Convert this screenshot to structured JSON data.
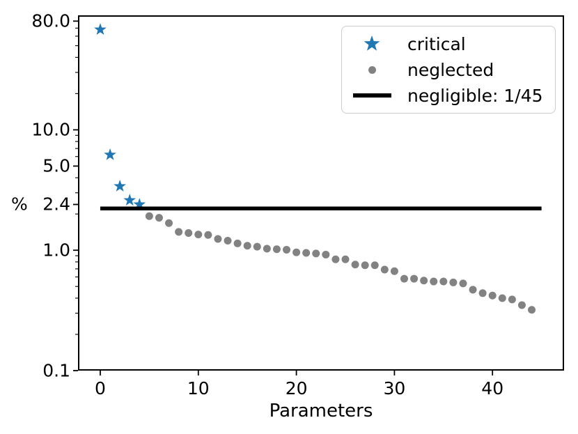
{
  "figure": {
    "xlabel": "Parameters",
    "ylabel": "%",
    "background": "#ffffff",
    "axis_color": "#000000"
  },
  "legend": {
    "items": [
      {
        "label": "critical",
        "marker": "star-icon",
        "color": "#1f77b4"
      },
      {
        "label": "neglected",
        "marker": "dot-icon",
        "color": "#828282"
      },
      {
        "label": "negligible: 1/45",
        "marker": "line-icon",
        "color": "#000000"
      }
    ]
  },
  "chart_data": {
    "type": "scatter",
    "title": "",
    "xlabel": "Parameters",
    "ylabel": "%",
    "yscale": "log",
    "xlim": [
      -2.2,
      47.3
    ],
    "ylim": [
      0.1,
      88.2
    ],
    "grid": false,
    "legend_position": "upper right",
    "xticks": [
      {
        "value": 0,
        "label": "0"
      },
      {
        "value": 10,
        "label": "10"
      },
      {
        "value": 20,
        "label": "20"
      },
      {
        "value": 30,
        "label": "30"
      },
      {
        "value": 40,
        "label": "40"
      }
    ],
    "yticks": [
      {
        "value": 80,
        "label": "80.0"
      },
      {
        "value": 10,
        "label": "10.0"
      },
      {
        "value": 5,
        "label": "5.0"
      },
      {
        "value": 2.4,
        "label": "2.4"
      },
      {
        "value": 1,
        "label": "1.0"
      },
      {
        "value": 0.1,
        "label": "0.1"
      }
    ],
    "yticks_minor": [
      70,
      60,
      50,
      40,
      30,
      20,
      9,
      8,
      7,
      6,
      4,
      3,
      2,
      0.9,
      0.8,
      0.7,
      0.6,
      0.5,
      0.4,
      0.3,
      0.2
    ],
    "series": [
      {
        "name": "critical",
        "marker": "star",
        "color": "#1f77b4",
        "x": [
          0,
          1,
          2,
          3,
          4
        ],
        "y": [
          68,
          6.2,
          3.4,
          2.6,
          2.4
        ]
      },
      {
        "name": "neglected",
        "marker": "dot",
        "color": "#828282",
        "x": [
          5,
          6,
          7,
          8,
          9,
          10,
          11,
          12,
          13,
          14,
          15,
          16,
          17,
          18,
          19,
          20,
          21,
          22,
          23,
          24,
          25,
          26,
          27,
          28,
          29,
          30,
          31,
          32,
          33,
          34,
          35,
          36,
          37,
          38,
          39,
          40,
          41,
          42,
          43,
          44
        ],
        "y": [
          1.92,
          1.86,
          1.68,
          1.42,
          1.39,
          1.35,
          1.34,
          1.24,
          1.2,
          1.14,
          1.09,
          1.07,
          1.03,
          1.02,
          1.01,
          0.96,
          0.95,
          0.94,
          0.92,
          0.84,
          0.84,
          0.76,
          0.75,
          0.75,
          0.69,
          0.67,
          0.58,
          0.58,
          0.56,
          0.55,
          0.55,
          0.54,
          0.53,
          0.47,
          0.44,
          0.42,
          0.4,
          0.39,
          0.35,
          0.32
        ]
      }
    ],
    "threshold": {
      "label": "negligible: 1/45",
      "value": 2.222,
      "x_start": 0,
      "x_end": 45,
      "color": "#000000",
      "linewidth": 5.5
    }
  }
}
